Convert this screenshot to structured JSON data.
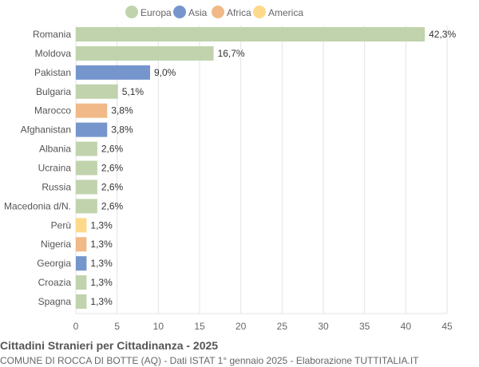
{
  "chart_data": {
    "type": "bar",
    "orientation": "horizontal",
    "title": "Cittadini Stranieri per Cittadinanza - 2025",
    "subtitle": "COMUNE DI ROCCA DI BOTTE (AQ) - Dati ISTAT 1° gennaio 2025 - Elaborazione TUTTITALIA.IT",
    "xlim": [
      0,
      45
    ],
    "xticks": [
      0,
      5,
      10,
      15,
      20,
      25,
      30,
      35,
      40,
      45
    ],
    "grid": true,
    "legend_placement": "top",
    "legend": [
      {
        "name": "Europa",
        "color": "#c0d3ad"
      },
      {
        "name": "Asia",
        "color": "#7595cc"
      },
      {
        "name": "Africa",
        "color": "#f0b987"
      },
      {
        "name": "America",
        "color": "#fed98b"
      }
    ],
    "categories": [
      "Romania",
      "Moldova",
      "Pakistan",
      "Bulgaria",
      "Marocco",
      "Afghanistan",
      "Albania",
      "Ucraina",
      "Russia",
      "Macedonia d/N.",
      "Perù",
      "Nigeria",
      "Georgia",
      "Croazia",
      "Spagna"
    ],
    "values": [
      42.3,
      16.7,
      9.0,
      5.1,
      3.8,
      3.8,
      2.6,
      2.6,
      2.6,
      2.6,
      1.3,
      1.3,
      1.3,
      1.3,
      1.3
    ],
    "labels": [
      "42,3%",
      "16,7%",
      "9,0%",
      "5,1%",
      "3,8%",
      "3,8%",
      "2,6%",
      "2,6%",
      "2,6%",
      "2,6%",
      "1,3%",
      "1,3%",
      "1,3%",
      "1,3%",
      "1,3%"
    ],
    "groups": [
      "Europa",
      "Europa",
      "Asia",
      "Europa",
      "Africa",
      "Asia",
      "Europa",
      "Europa",
      "Europa",
      "Europa",
      "America",
      "Africa",
      "Asia",
      "Europa",
      "Europa"
    ]
  }
}
